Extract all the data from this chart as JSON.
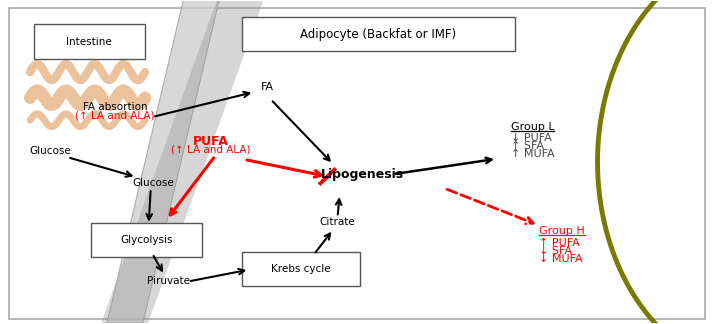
{
  "bg_color": "#ffffff",
  "intestine_box_label": "Intestine",
  "adipocyte_box_label": "Adipocyte (Backfat or IMF)",
  "intestine_stripe_color": "#e8b88a",
  "olive_arc_color": "#7a7a00",
  "diagonal_stripe_color": "#aaaaaa",
  "fa_absortion_line1": "FA absortion",
  "fa_absortion_line2": "(↑ LA and ALA)",
  "fa_label": "FA",
  "glucose_left_label": "Glucose",
  "glucose_mid_label": "Glucose",
  "pufa_line1": "PUFA",
  "pufa_line2": "(↑ LA and ALA)",
  "lipogenesis_label": "Lipogenesis",
  "glycolysis_label": "Glycolysis",
  "piruvate_label": "Piruvate",
  "krebs_label": "Krebs cycle",
  "citrate_label": "Citrate",
  "groupL_label": "Group L",
  "groupL_line1": "↓ PUFA",
  "groupL_line2": "↑ SFA",
  "groupL_line3": "↑ MUFA",
  "groupH_label": "Group H",
  "groupH_line1": "↑ PUFA",
  "groupH_line2": "↓ SFA",
  "groupH_line3": "↓ MUFA"
}
